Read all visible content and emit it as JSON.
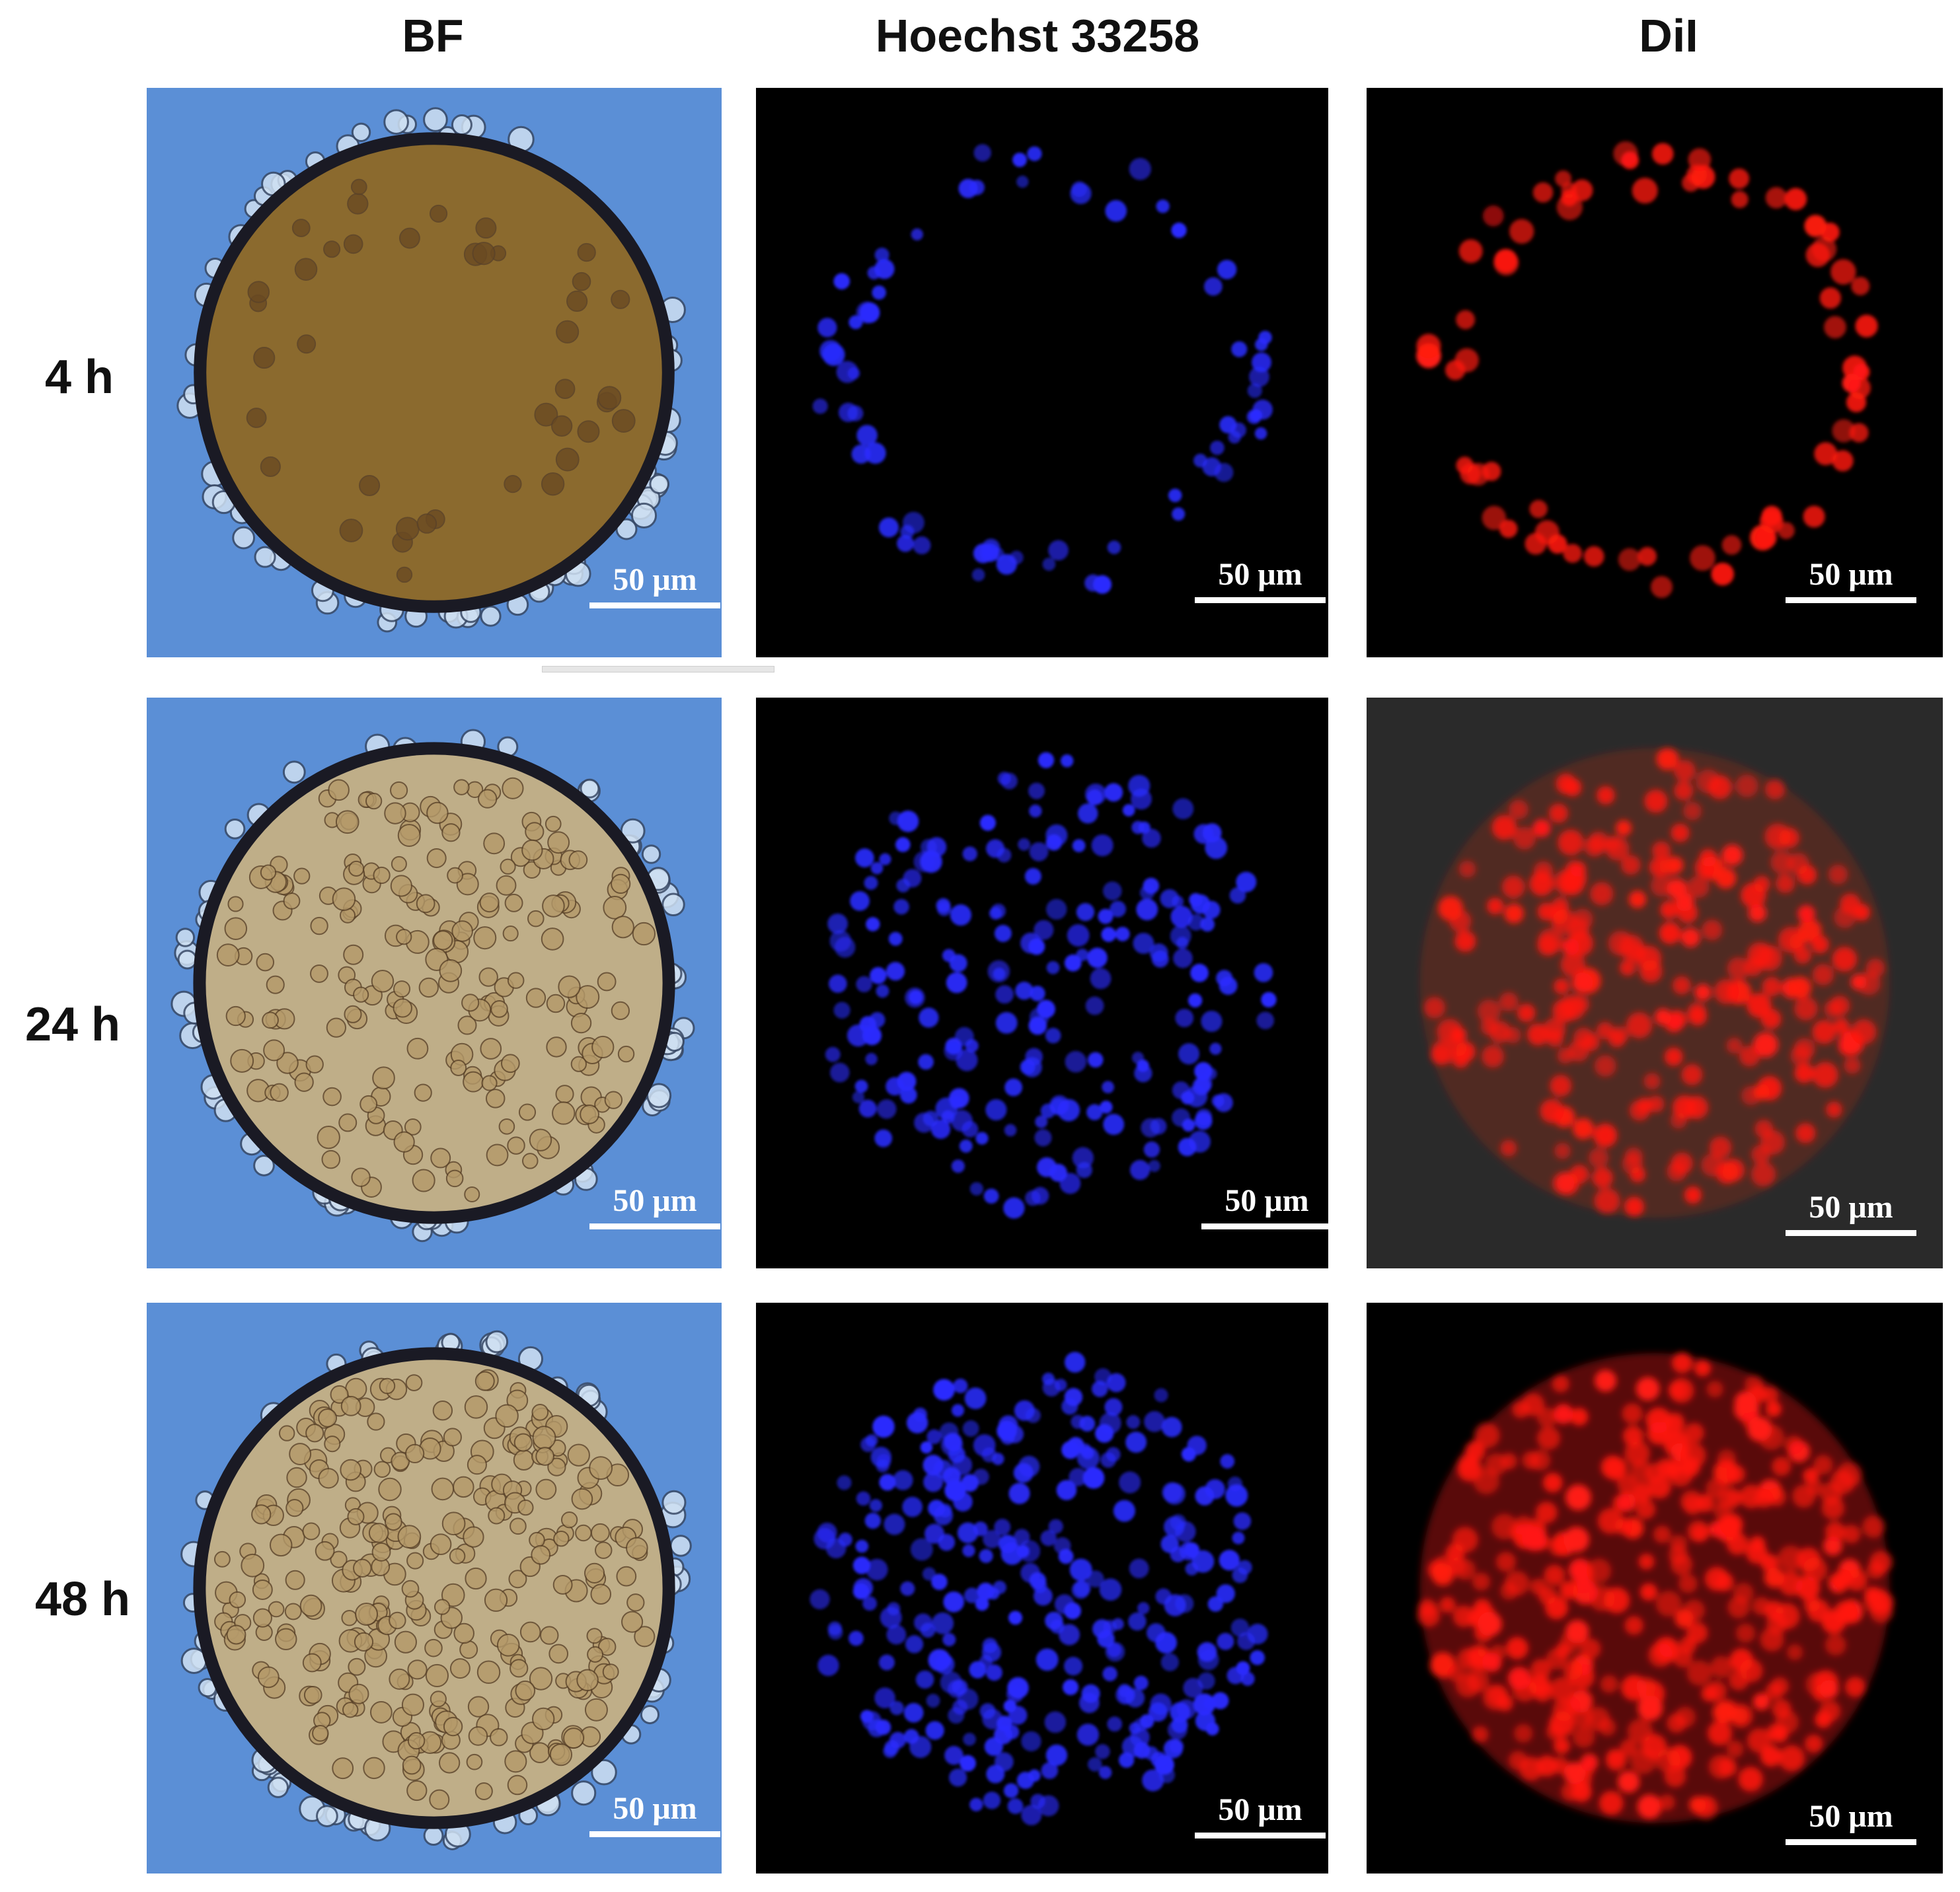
{
  "columns": [
    {
      "label": "BF"
    },
    {
      "label": "Hoechst 33258"
    },
    {
      "label": "DiI"
    }
  ],
  "rows": [
    {
      "label": "4 h"
    },
    {
      "label": "24 h"
    },
    {
      "label": "48 h"
    }
  ],
  "scale_bar_label": "50 μm",
  "colors": {
    "bf_background": "#5b8fd6",
    "bf_sphere_4h": "#8b6a2e",
    "bf_sphere_later": "#bfae88",
    "hoechst_nuclei": "#2a2cff",
    "dil_cells": "#ff1a12",
    "fluorescence_background": "#000000",
    "dil_24h_background": "#2a2a2a"
  }
}
